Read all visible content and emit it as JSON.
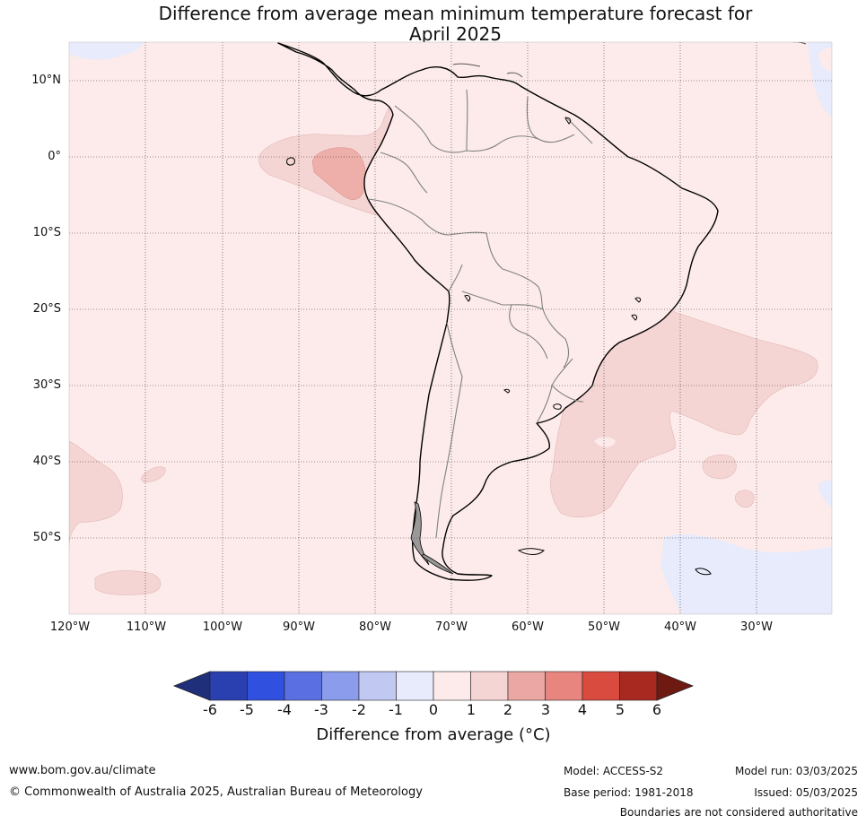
{
  "title": {
    "line1": "Difference from average mean minimum temperature forecast for",
    "line2": "April 2025"
  },
  "map": {
    "lat_labels": [
      "10°N",
      "0°",
      "10°S",
      "20°S",
      "30°S",
      "40°S",
      "50°S"
    ],
    "lon_labels": [
      "120°W",
      "110°W",
      "100°W",
      "90°W",
      "80°W",
      "70°W",
      "60°W",
      "50°W",
      "40°W",
      "30°W"
    ],
    "gridlines": "dotted",
    "background_class": "0 to 1",
    "features": [
      {
        "name": "south-america",
        "class": "0 to 1"
      },
      {
        "name": "galapagos-anomaly",
        "class": "1 to 3"
      },
      {
        "name": "brazil-atlantic-anomaly",
        "class": "1 to 2"
      },
      {
        "name": "southwest-pacific-cool",
        "class": "-1 to 0"
      },
      {
        "name": "south-atlantic-cool",
        "class": "-1 to 0"
      }
    ]
  },
  "colorbar": {
    "ticks": [
      "-6",
      "-5",
      "-4",
      "-3",
      "-2",
      "-1",
      "0",
      "1",
      "2",
      "3",
      "4",
      "5",
      "6"
    ],
    "colors": [
      "#1f2f7a",
      "#2a3fb0",
      "#3050e0",
      "#5a70e2",
      "#8a9ceb",
      "#c1c9f3",
      "#e8ebfb",
      "#fcebea",
      "#f5d5d3",
      "#eaa7a3",
      "#e8857f",
      "#d94b3f",
      "#a8291f",
      "#6e1a12"
    ],
    "label": "Difference from average (°C)"
  },
  "footer": {
    "website": "www.bom.gov.au/climate",
    "copyright": "© Commonwealth of Australia 2025, Australian Bureau of Meteorology",
    "model": "Model: ACCESS-S2",
    "base_period": "Base period: 1981-2018",
    "model_run": "Model run: 03/03/2025",
    "issued": "Issued: 05/03/2025",
    "disclaimer": "Boundaries are not considered authoritative"
  }
}
